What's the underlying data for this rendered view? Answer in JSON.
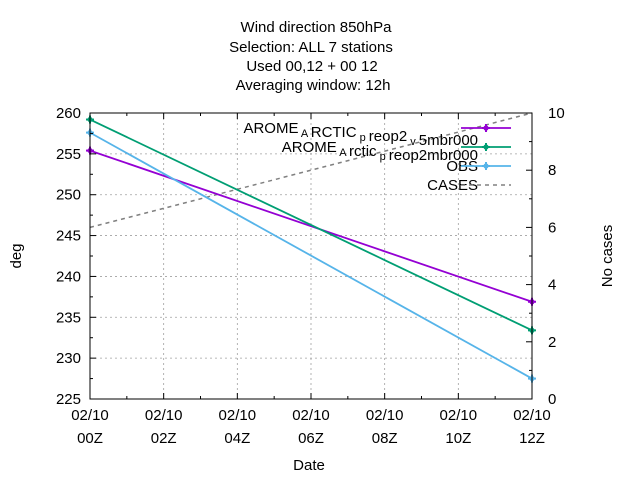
{
  "chart_data": {
    "type": "line",
    "title_lines": [
      "Wind direction 850hPa",
      "Selection: ALL      7 stations",
      "Used  00,12  + 00 12",
      "Averaging window: 12h"
    ],
    "xlabel": "Date",
    "ylabel": "deg",
    "y2label": "No cases",
    "x": [
      0,
      12
    ],
    "x_ticks": [
      {
        "value": 0,
        "line1": "02/10",
        "line2": "00Z"
      },
      {
        "value": 2,
        "line1": "02/10",
        "line2": "02Z"
      },
      {
        "value": 4,
        "line1": "02/10",
        "line2": "04Z"
      },
      {
        "value": 6,
        "line1": "02/10",
        "line2": "06Z"
      },
      {
        "value": 8,
        "line1": "02/10",
        "line2": "08Z"
      },
      {
        "value": 10,
        "line1": "02/10",
        "line2": "10Z"
      },
      {
        "value": 12,
        "line1": "02/10",
        "line2": "12Z"
      }
    ],
    "xlim": [
      0,
      12
    ],
    "ylim": [
      225,
      260
    ],
    "y_ticks": [
      225,
      230,
      235,
      240,
      245,
      250,
      255,
      260
    ],
    "y2lim": [
      0,
      10
    ],
    "y2_ticks": [
      0,
      2,
      4,
      6,
      8,
      10
    ],
    "grid": true,
    "legend_position": "top-right",
    "series": [
      {
        "name": "AROME_ARCTIC_preop2_v5mbr000",
        "legend_main": [
          "AROME",
          "RCTIC",
          "reop2",
          "5mbr000"
        ],
        "legend_sub": [
          "A",
          "p",
          "v"
        ],
        "color": "#9400d3",
        "axis": "y",
        "marker": "plus",
        "values": [
          255.4,
          236.9
        ]
      },
      {
        "name": "AROME_Arctic_preop2mbr000",
        "legend_main": [
          "AROME",
          "rctic",
          "reop2mbr000"
        ],
        "legend_sub": [
          "A",
          "p"
        ],
        "color": "#009e73",
        "axis": "y",
        "marker": "plus",
        "values": [
          259.2,
          233.4
        ]
      },
      {
        "name": "OBS",
        "color": "#56b4e9",
        "axis": "y",
        "marker": "plus",
        "values": [
          257.6,
          227.5
        ]
      },
      {
        "name": "CASES",
        "color": "#808080",
        "axis": "y2",
        "dashed": true,
        "values": [
          6.0,
          10.0
        ]
      }
    ]
  }
}
